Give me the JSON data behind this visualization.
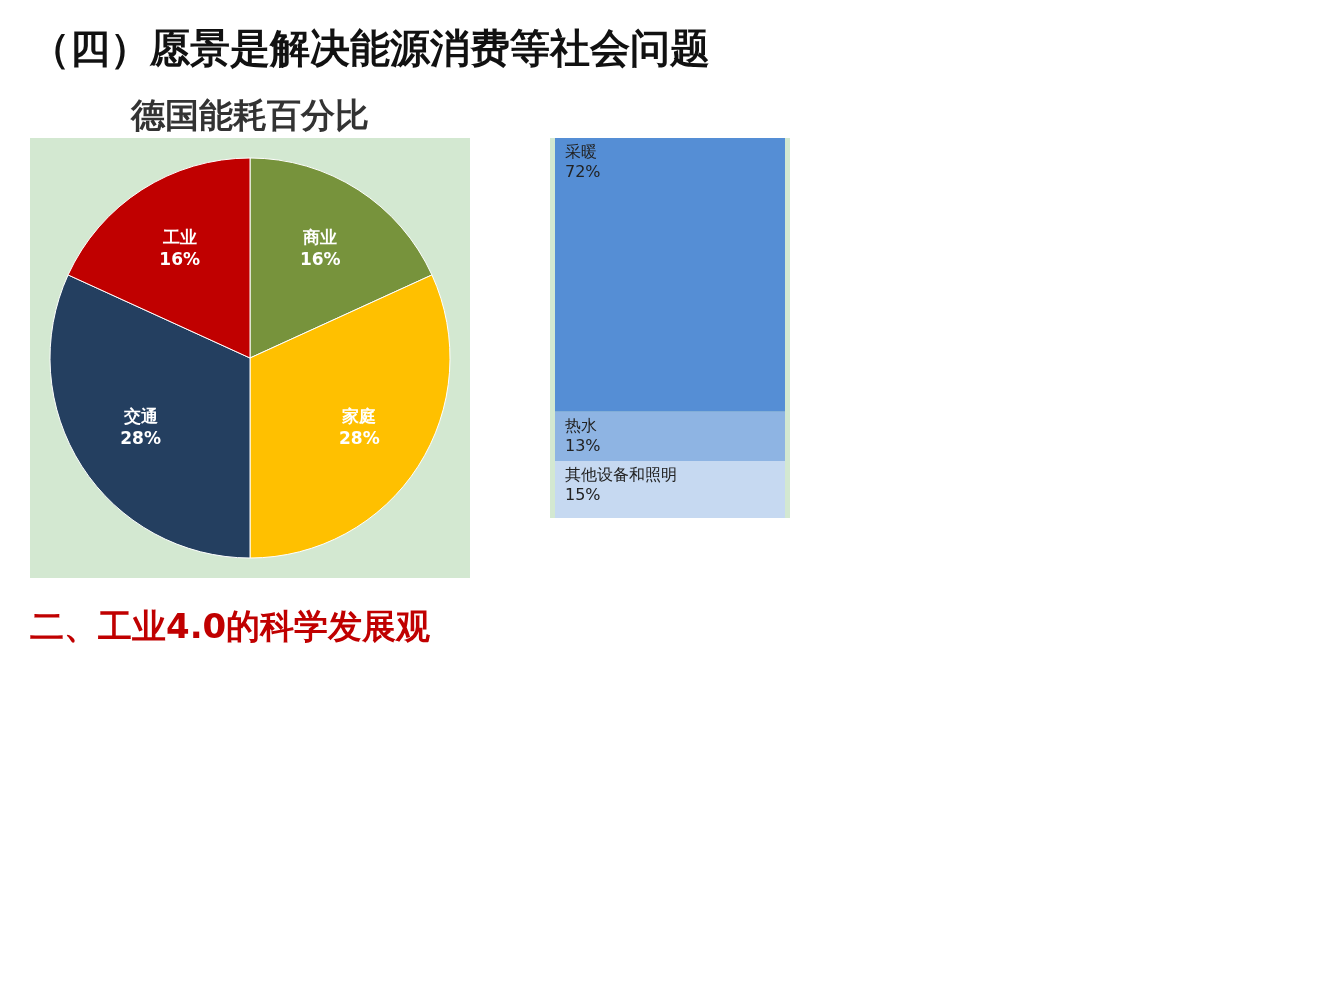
{
  "chart_data": [
    {
      "type": "pie",
      "title": "德国能耗百分比",
      "categories": [
        "商业",
        "家庭",
        "交通",
        "工业"
      ],
      "values": [
        16,
        28,
        28,
        16
      ],
      "value_labels": [
        "16%",
        "28%",
        "28%",
        "16%"
      ],
      "colors": [
        "#77933c",
        "#ffc000",
        "#243f60",
        "#c00000"
      ],
      "legend": false,
      "annotations": [
        "（四）愿景是解决能源消费等社会问题",
        "二、工业4.0的科学发展观"
      ]
    },
    {
      "type": "bar",
      "stacked": true,
      "categories": [
        null
      ],
      "series": [
        {
          "name": "其他设备和照明",
          "color": "#c6d9f1",
          "values": [
            15
          ],
          "value_labels": [
            "15%"
          ]
        },
        {
          "name": "热水",
          "color": "#8eb4e3",
          "values": [
            13
          ],
          "value_labels": [
            "13%"
          ]
        },
        {
          "name": "采暖",
          "color": "#558ed5",
          "values": [
            72
          ],
          "value_labels": [
            "72%"
          ]
        }
      ]
    }
  ]
}
